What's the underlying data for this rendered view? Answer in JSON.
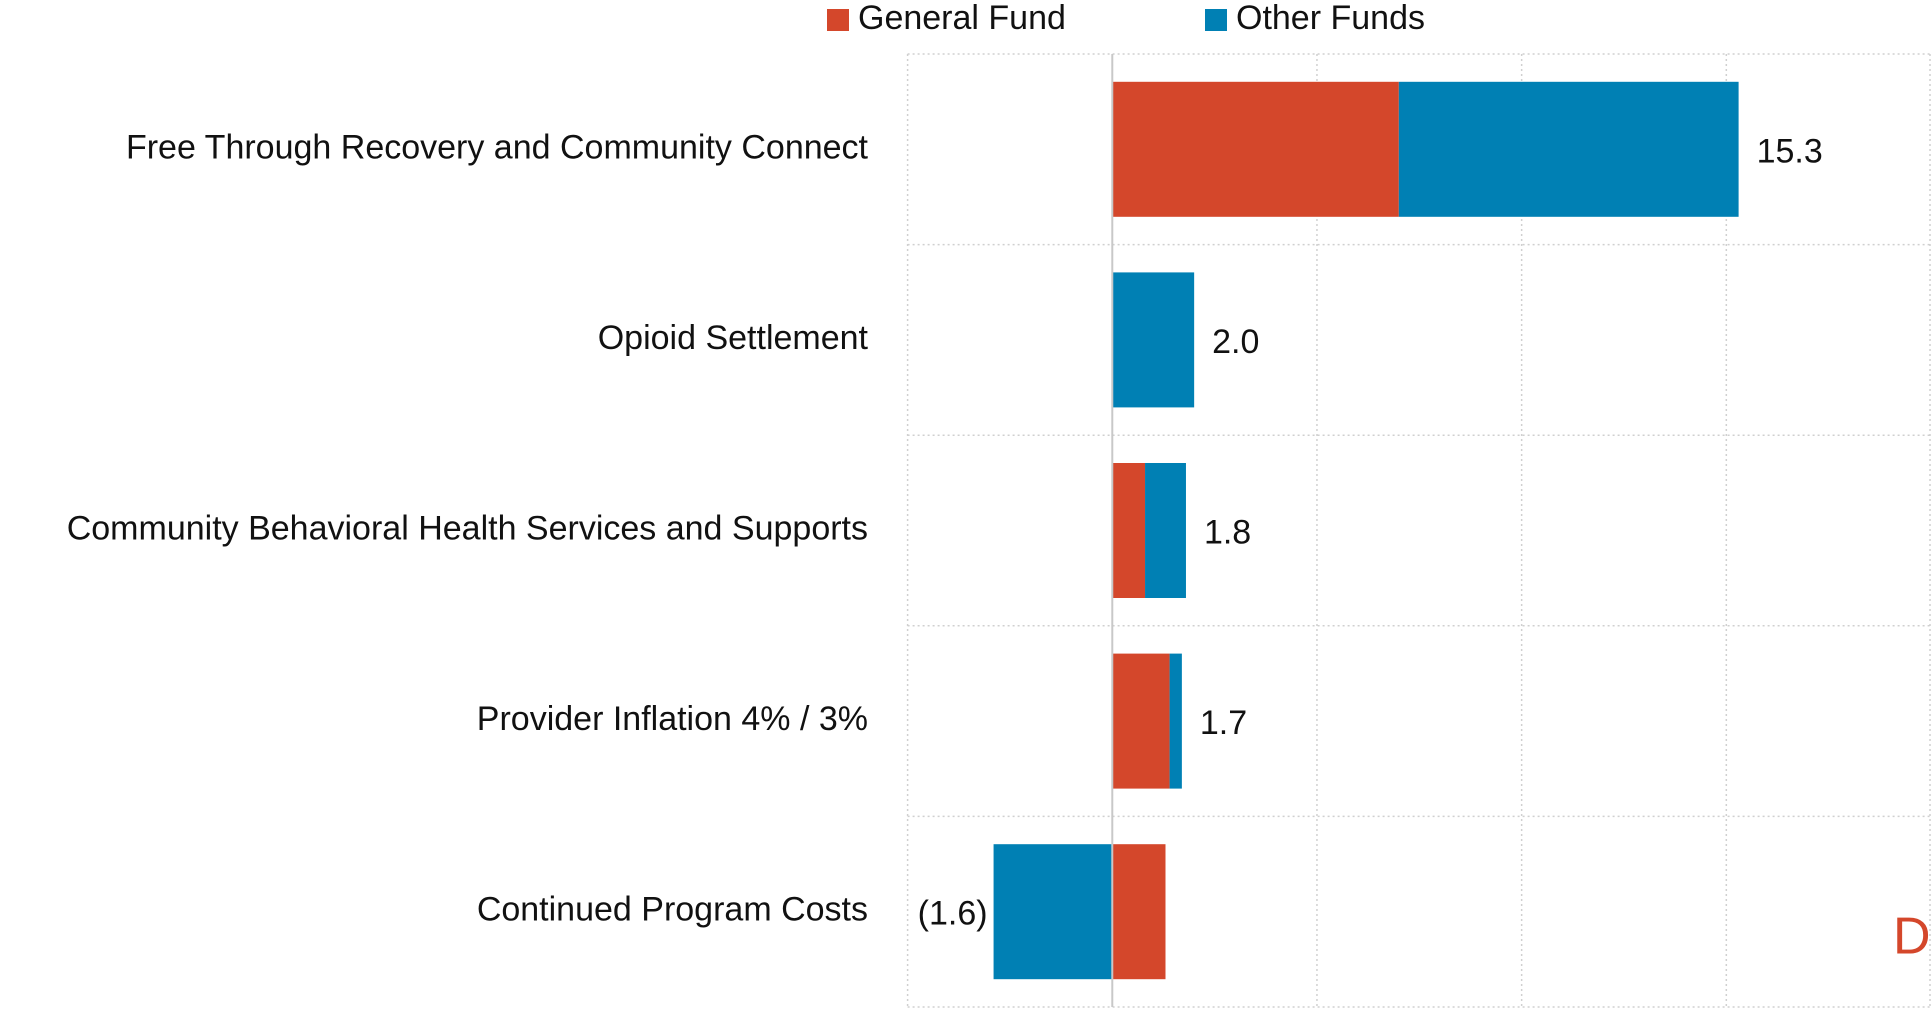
{
  "chart_data": {
    "type": "stacked-bar-horizontal",
    "categories": [
      "Free Through Recovery and Community Connect",
      "Opioid Settlement",
      "Community Behavioral Health Services and Supports",
      "Provider Inflation 4% / 3%",
      "Continued Program Costs"
    ],
    "series": [
      {
        "name": "General Fund",
        "color": "#d4472b",
        "values": [
          7.0,
          0,
          0.8,
          1.4,
          1.3
        ]
      },
      {
        "name": "Other Funds",
        "color": "#0080b4",
        "values": [
          8.3,
          2.0,
          1.0,
          0.3,
          -2.9
        ]
      }
    ],
    "totals": [
      15.3,
      2.0,
      1.8,
      1.7,
      -1.6
    ],
    "total_labels": [
      "15.3",
      "2.0",
      "1.8",
      "1.7",
      "(1.6)"
    ],
    "xlim": [
      -5,
      20
    ],
    "xticks": [
      -5,
      0,
      5,
      10,
      15,
      20
    ],
    "grid": true,
    "watermark": "D"
  }
}
